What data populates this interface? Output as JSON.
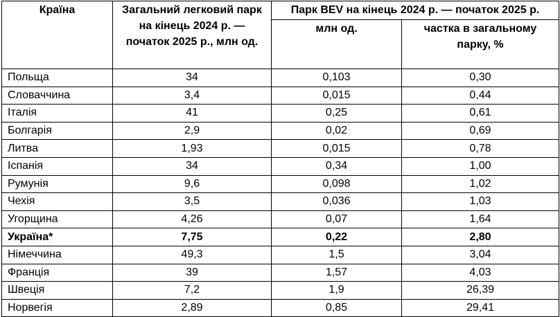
{
  "table": {
    "headers": {
      "country": "Країна",
      "total_park": "Загальний легковий парк на кінець 2024 р. — початок 2025 р., млн од.",
      "bev_group": "Парк BEV на кінець 2024 р. — початок 2025 р.",
      "bev_mln": "млн од.",
      "bev_share": "частка в загальному парку, %"
    },
    "rows": [
      {
        "country": "Польща",
        "total": "34",
        "bev": "0,103",
        "share": "0,30",
        "bold": false
      },
      {
        "country": "Словаччина",
        "total": "3,4",
        "bev": "0,015",
        "share": "0,44",
        "bold": false
      },
      {
        "country": "Італія",
        "total": "41",
        "bev": "0,25",
        "share": "0,61",
        "bold": false
      },
      {
        "country": "Болгарія",
        "total": "2,9",
        "bev": "0,02",
        "share": "0,69",
        "bold": false
      },
      {
        "country": "Литва",
        "total": "1,93",
        "bev": "0,015",
        "share": "0,78",
        "bold": false
      },
      {
        "country": "Іспанія",
        "total": "34",
        "bev": "0,34",
        "share": "1,00",
        "bold": false
      },
      {
        "country": "Румунія",
        "total": "9,6",
        "bev": "0,098",
        "share": "1,02",
        "bold": false
      },
      {
        "country": "Чехія",
        "total": "3,5",
        "bev": "0,036",
        "share": "1,03",
        "bold": false
      },
      {
        "country": "Угорщина",
        "total": "4,26",
        "bev": "0,07",
        "share": "1,64",
        "bold": false
      },
      {
        "country": "Україна*",
        "total": "7,75",
        "bev": "0,22",
        "share": "2,80",
        "bold": true
      },
      {
        "country": "Німеччина",
        "total": "49,3",
        "bev": "1,5",
        "share": "3,04",
        "bold": false
      },
      {
        "country": "Франція",
        "total": "39",
        "bev": "1,57",
        "share": "4,03",
        "bold": false
      },
      {
        "country": "Швеція",
        "total": "7,2",
        "bev": "1,9",
        "share": "26,39",
        "bold": false
      },
      {
        "country": "Норвегія",
        "total": "2,89",
        "bev": "0,85",
        "share": "29,41",
        "bold": false
      }
    ]
  },
  "colors": {
    "border": "#000000",
    "text": "#000000",
    "background": "#ffffff"
  },
  "chart_data": {
    "type": "table",
    "title": "",
    "columns": [
      "Країна",
      "Загальний легковий парк на кінець 2024 р. — початок 2025 р., млн од.",
      "Парк BEV на кінець 2024 р. — початок 2025 р., млн од.",
      "Парк BEV на кінець 2024 р. — початок 2025 р., частка в загальному парку, %"
    ],
    "rows": [
      {
        "country": "Польща",
        "total_park_mln": 34,
        "bev_park_mln": 0.103,
        "bev_share_pct": 0.3
      },
      {
        "country": "Словаччина",
        "total_park_mln": 3.4,
        "bev_park_mln": 0.015,
        "bev_share_pct": 0.44
      },
      {
        "country": "Італія",
        "total_park_mln": 41,
        "bev_park_mln": 0.25,
        "bev_share_pct": 0.61
      },
      {
        "country": "Болгарія",
        "total_park_mln": 2.9,
        "bev_park_mln": 0.02,
        "bev_share_pct": 0.69
      },
      {
        "country": "Литва",
        "total_park_mln": 1.93,
        "bev_park_mln": 0.015,
        "bev_share_pct": 0.78
      },
      {
        "country": "Іспанія",
        "total_park_mln": 34,
        "bev_park_mln": 0.34,
        "bev_share_pct": 1.0
      },
      {
        "country": "Румунія",
        "total_park_mln": 9.6,
        "bev_park_mln": 0.098,
        "bev_share_pct": 1.02
      },
      {
        "country": "Чехія",
        "total_park_mln": 3.5,
        "bev_park_mln": 0.036,
        "bev_share_pct": 1.03
      },
      {
        "country": "Угорщина",
        "total_park_mln": 4.26,
        "bev_park_mln": 0.07,
        "bev_share_pct": 1.64
      },
      {
        "country": "Україна*",
        "total_park_mln": 7.75,
        "bev_park_mln": 0.22,
        "bev_share_pct": 2.8
      },
      {
        "country": "Німеччина",
        "total_park_mln": 49.3,
        "bev_park_mln": 1.5,
        "bev_share_pct": 3.04
      },
      {
        "country": "Франція",
        "total_park_mln": 39,
        "bev_park_mln": 1.57,
        "bev_share_pct": 4.03
      },
      {
        "country": "Швеція",
        "total_park_mln": 7.2,
        "bev_park_mln": 1.9,
        "bev_share_pct": 26.39
      },
      {
        "country": "Норвегія",
        "total_park_mln": 2.89,
        "bev_park_mln": 0.85,
        "bev_share_pct": 29.41
      }
    ],
    "layout": {
      "decimal_separator_displayed": ",",
      "highlighted_row": "Україна*"
    }
  }
}
